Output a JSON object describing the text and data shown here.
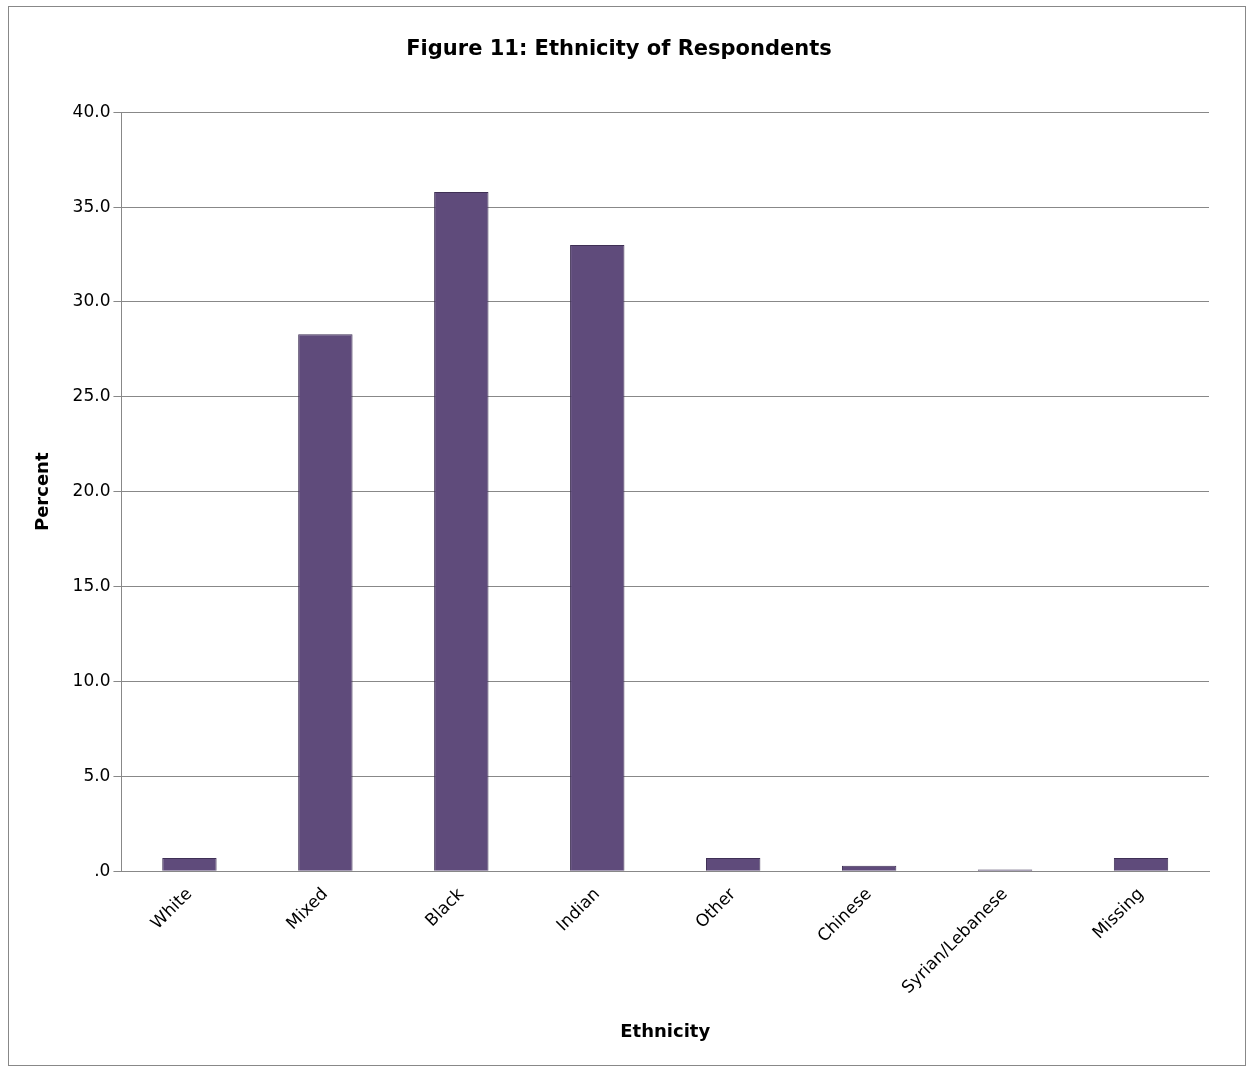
{
  "chart_data": {
    "type": "bar",
    "title": "Figure 11: Ethnicity of Respondents",
    "xlabel": "Ethnicity",
    "ylabel": "Percent",
    "categories": [
      "White",
      "Mixed",
      "Black",
      "Indian",
      "Other",
      "Chinese",
      "Syrian/Lebanese",
      "Missing"
    ],
    "values": [
      0.7,
      28.3,
      35.8,
      33.0,
      0.7,
      0.3,
      0.1,
      0.7
    ],
    "color": "#5f4b7b",
    "ylim": [
      0,
      40
    ],
    "yticks": [
      {
        "value": 0,
        "label": ".0"
      },
      {
        "value": 5,
        "label": "5.0"
      },
      {
        "value": 10,
        "label": "10.0"
      },
      {
        "value": 15,
        "label": "15.0"
      },
      {
        "value": 20,
        "label": "20.0"
      },
      {
        "value": 25,
        "label": "25.0"
      },
      {
        "value": 30,
        "label": "30.0"
      },
      {
        "value": 35,
        "label": "35.0"
      },
      {
        "value": 40,
        "label": "40.0"
      }
    ],
    "grid": "y",
    "legend": false
  }
}
